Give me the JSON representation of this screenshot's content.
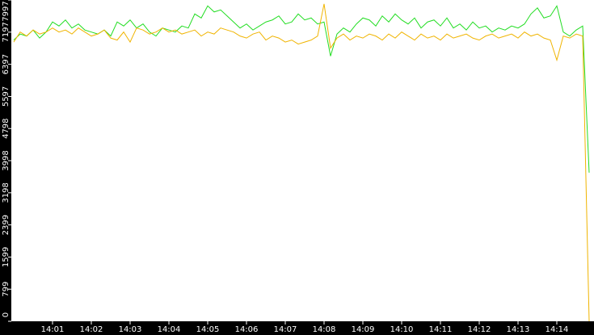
{
  "chart_data": {
    "type": "line",
    "categories": [
      null,
      null,
      null,
      null,
      null,
      null,
      "14:01",
      null,
      null,
      null,
      null,
      null,
      "14:02",
      null,
      null,
      null,
      null,
      null,
      "14:03",
      null,
      null,
      null,
      null,
      null,
      "14:04",
      null,
      null,
      null,
      null,
      null,
      "14:05",
      null,
      null,
      null,
      null,
      null,
      "14:06",
      null,
      null,
      null,
      null,
      null,
      "14:07",
      null,
      null,
      null,
      null,
      null,
      "14:08",
      null,
      null,
      null,
      null,
      null,
      "14:09",
      null,
      null,
      null,
      null,
      null,
      "14:10",
      null,
      null,
      null,
      null,
      null,
      "14:11",
      null,
      null,
      null,
      null,
      null,
      "14:12",
      null,
      null,
      null,
      null,
      null,
      "14:13",
      null,
      null,
      null,
      null,
      null,
      "14:14",
      null,
      null,
      null,
      null,
      null
    ],
    "series": [
      {
        "color": "#22dd22",
        "values": [
          7000,
          7150,
          7100,
          7250,
          7050,
          7200,
          7450,
          7350,
          7500,
          7300,
          7400,
          7250,
          7200,
          7150,
          7250,
          7100,
          7450,
          7350,
          7500,
          7300,
          7400,
          7200,
          7100,
          7300,
          7250,
          7200,
          7350,
          7300,
          7650,
          7550,
          7850,
          7700,
          7750,
          7600,
          7450,
          7300,
          7400,
          7250,
          7350,
          7450,
          7500,
          7600,
          7400,
          7450,
          7650,
          7500,
          7550,
          7400,
          7450,
          6600,
          7150,
          7300,
          7200,
          7400,
          7550,
          7500,
          7350,
          7600,
          7450,
          7650,
          7500,
          7400,
          7550,
          7300,
          7450,
          7500,
          7350,
          7550,
          7300,
          7400,
          7250,
          7450,
          7300,
          7350,
          7200,
          7300,
          7250,
          7350,
          7300,
          7400,
          7650,
          7800,
          7550,
          7600,
          7850,
          7200,
          7100,
          7250,
          7350,
          3700
        ]
      },
      {
        "color": "#f0b400",
        "values": [
          6950,
          7200,
          7100,
          7250,
          7150,
          7200,
          7300,
          7200,
          7250,
          7150,
          7300,
          7200,
          7100,
          7150,
          7250,
          7050,
          7000,
          7200,
          6950,
          7300,
          7250,
          7150,
          7200,
          7300,
          7200,
          7250,
          7150,
          7200,
          7250,
          7100,
          7200,
          7150,
          7300,
          7250,
          7200,
          7100,
          7050,
          7150,
          7200,
          7000,
          7100,
          7050,
          6950,
          7000,
          6900,
          6950,
          7000,
          7100,
          7900,
          6800,
          7050,
          7150,
          7000,
          7100,
          7050,
          7150,
          7100,
          7000,
          7150,
          7050,
          7200,
          7100,
          7000,
          7150,
          7050,
          7100,
          7000,
          7150,
          7050,
          7100,
          7150,
          7050,
          7000,
          7100,
          7150,
          7050,
          7100,
          7150,
          7050,
          7200,
          7100,
          7150,
          7050,
          7000,
          6500,
          7100,
          7050,
          7150,
          7100,
          0
        ]
      }
    ],
    "ylim": [
      0,
      7997
    ],
    "yticks": [
      0,
      799,
      1599,
      2399,
      3198,
      3998,
      4798,
      5597,
      6397,
      7197,
      7997
    ]
  }
}
